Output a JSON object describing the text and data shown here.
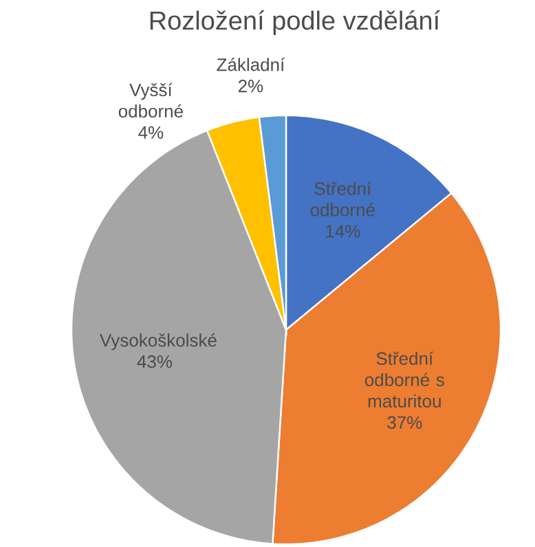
{
  "chart_data": {
    "type": "pie",
    "title": "Rozložení podle vzdělání",
    "categories": [
      "Střední odborné",
      "Střední odborné s maturitou",
      "Vysokoškolské",
      "Vyšší odborné",
      "Základní"
    ],
    "values": [
      14,
      37,
      43,
      4,
      2
    ],
    "value_labels": [
      "14%",
      "37%",
      "43%",
      "4%",
      "2%"
    ],
    "colors": [
      "#4472c4",
      "#ed7d31",
      "#a5a5a5",
      "#ffc000",
      "#5b9bd5"
    ]
  }
}
